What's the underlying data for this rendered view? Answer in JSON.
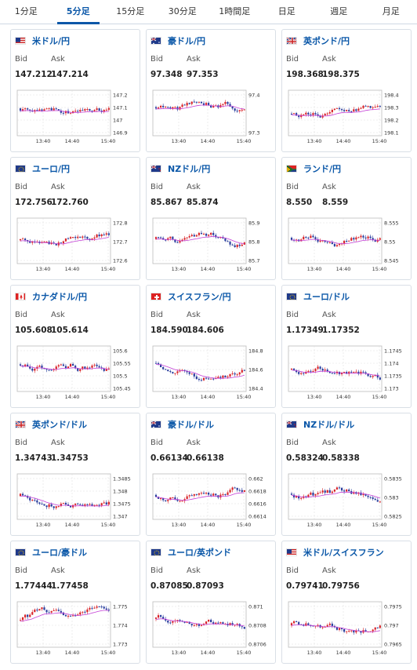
{
  "tabs": [
    {
      "label": "1分足",
      "active": false
    },
    {
      "label": "5分足",
      "active": true
    },
    {
      "label": "15分足",
      "active": false
    },
    {
      "label": "30分足",
      "active": false
    },
    {
      "label": "1時間足",
      "active": false
    },
    {
      "label": "日足",
      "active": false
    },
    {
      "label": "週足",
      "active": false
    },
    {
      "label": "月足",
      "active": false
    }
  ],
  "labels": {
    "bid": "Bid",
    "ask": "Ask"
  },
  "cards": [
    {
      "title": "米ドル/円",
      "flag": "us",
      "bid": "147.212",
      "ask": "147.214",
      "ticks": [
        "147.2",
        "147.1",
        "147",
        "146.9"
      ],
      "times": [
        "13:40",
        "14:40",
        "15:40"
      ]
    },
    {
      "title": "豪ドル/円",
      "flag": "au",
      "bid": "97.348",
      "ask": "97.353",
      "ticks": [
        "97.4",
        "97.3"
      ],
      "times": [
        "13:40",
        "14:40",
        "15:40"
      ]
    },
    {
      "title": "英ポンド/円",
      "flag": "uk",
      "bid": "198.368",
      "ask": "198.375",
      "ticks": [
        "198.4",
        "198.3",
        "198.2",
        "198.1"
      ],
      "times": [
        "13:40",
        "14:40",
        "15:40"
      ]
    },
    {
      "title": "ユーロ/円",
      "flag": "eu",
      "bid": "172.756",
      "ask": "172.760",
      "ticks": [
        "172.8",
        "172.7",
        "172.6"
      ],
      "times": [
        "13:40",
        "14:40",
        "15:40"
      ]
    },
    {
      "title": "NZドル/円",
      "flag": "nz",
      "bid": "85.867",
      "ask": "85.874",
      "ticks": [
        "85.9",
        "85.8",
        "85.7"
      ],
      "times": [
        "13:40",
        "14:40",
        "15:40"
      ]
    },
    {
      "title": "ランド/円",
      "flag": "za",
      "bid": "8.550",
      "ask": "8.559",
      "ticks": [
        "8.555",
        "8.55",
        "8.545"
      ],
      "times": [
        "13:40",
        "14:40",
        "15:40"
      ]
    },
    {
      "title": "カナダドル/円",
      "flag": "ca",
      "bid": "105.608",
      "ask": "105.614",
      "ticks": [
        "105.6",
        "105.55",
        "105.5",
        "105.45"
      ],
      "times": [
        "13:40",
        "14:40",
        "15:40"
      ]
    },
    {
      "title": "スイスフラン/円",
      "flag": "ch",
      "bid": "184.590",
      "ask": "184.606",
      "ticks": [
        "184.8",
        "184.6",
        "184.4"
      ],
      "times": [
        "13:40",
        "14:40",
        "15:40"
      ]
    },
    {
      "title": "ユーロ/ドル",
      "flag": "eu",
      "bid": "1.17349",
      "ask": "1.17352",
      "ticks": [
        "1.1745",
        "1.174",
        "1.1735",
        "1.173"
      ],
      "times": [
        "13:40",
        "14:40",
        "15:40"
      ]
    },
    {
      "title": "英ポンド/ドル",
      "flag": "uk",
      "bid": "1.34743",
      "ask": "1.34753",
      "ticks": [
        "1.3485",
        "1.348",
        "1.3475",
        "1.347"
      ],
      "times": [
        "13:40",
        "14:40",
        "15:40"
      ]
    },
    {
      "title": "豪ドル/ドル",
      "flag": "au",
      "bid": "0.66134",
      "ask": "0.66138",
      "ticks": [
        "0.662",
        "0.6618",
        "0.6616",
        "0.6614"
      ],
      "times": [
        "13:40",
        "14:40",
        "15:40"
      ]
    },
    {
      "title": "NZドル/ドル",
      "flag": "nz",
      "bid": "0.58324",
      "ask": "0.58338",
      "ticks": [
        "0.5835",
        "0.583",
        "0.5825"
      ],
      "times": [
        "13:40",
        "14:40",
        "15:40"
      ]
    },
    {
      "title": "ユーロ/豪ドル",
      "flag": "eu",
      "bid": "1.77444",
      "ask": "1.77458",
      "ticks": [
        "1.775",
        "1.774",
        "1.773"
      ],
      "times": [
        "13:40",
        "14:40",
        "15:40"
      ]
    },
    {
      "title": "ユーロ/英ポンド",
      "flag": "eu",
      "bid": "0.87085",
      "ask": "0.87093",
      "ticks": [
        "0.871",
        "0.8708",
        "0.8706"
      ],
      "times": [
        "13:40",
        "14:40",
        "15:40"
      ]
    },
    {
      "title": "米ドル/スイスフラン",
      "flag": "us",
      "bid": "0.79741",
      "ask": "0.79756",
      "ticks": [
        "0.7975",
        "0.797",
        "0.7965"
      ],
      "times": [
        "13:40",
        "14:40",
        "15:40"
      ]
    }
  ]
}
